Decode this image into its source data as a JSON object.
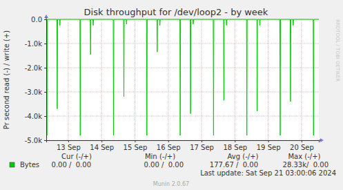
{
  "chart_data": {
    "type": "line",
    "title": "Disk throughput for /dev/loop2 - by week",
    "y_label": "Pr second read (-) / write (+)",
    "x": [
      12.84,
      12.85,
      12.86,
      12.87,
      13.16,
      13.17,
      13.18,
      13.24,
      13.25,
      13.26,
      13.85,
      13.86,
      13.87,
      14.16,
      14.17,
      14.18,
      14.24,
      14.25,
      14.26,
      14.85,
      14.86,
      14.87,
      15.16,
      15.17,
      15.18,
      15.24,
      15.25,
      15.26,
      15.85,
      15.86,
      15.87,
      16.16,
      16.17,
      16.18,
      16.24,
      16.25,
      16.26,
      16.85,
      16.86,
      16.87,
      17.16,
      17.17,
      17.18,
      17.24,
      17.25,
      17.26,
      17.85,
      17.86,
      17.87,
      18.16,
      18.17,
      18.18,
      18.24,
      18.25,
      18.26,
      18.85,
      18.86,
      18.87,
      19.16,
      19.17,
      19.18,
      19.24,
      19.25,
      19.26,
      19.85,
      19.86,
      19.87,
      20.16,
      20.17,
      20.18,
      20.24,
      20.25,
      20.26,
      20.85,
      20.86,
      20.87,
      21.02
    ],
    "series": [
      {
        "name": "Bytes",
        "color": "#00cc00",
        "values": [
          0,
          0,
          -4800,
          0,
          0,
          -3700,
          0,
          0,
          -250,
          0,
          0,
          -4800,
          0,
          0,
          -1450,
          0,
          0,
          -250,
          0,
          0,
          -4800,
          0,
          0,
          -3200,
          0,
          0,
          -200,
          0,
          0,
          -4800,
          0,
          0,
          -1350,
          0,
          0,
          -250,
          0,
          0,
          -4800,
          0,
          0,
          -3900,
          0,
          0,
          -200,
          0,
          0,
          -4800,
          0,
          0,
          -3350,
          0,
          0,
          -250,
          0,
          0,
          -4800,
          0,
          0,
          -3800,
          0,
          0,
          -250,
          0,
          0,
          -4800,
          0,
          0,
          -3400,
          0,
          0,
          -250,
          0,
          0,
          -4800,
          0,
          0
        ]
      }
    ],
    "xlim": [
      12.84,
      21.02
    ],
    "xticks": [
      {
        "value": 13.5,
        "label": "13 Sep"
      },
      {
        "value": 14.5,
        "label": "14 Sep"
      },
      {
        "value": 15.5,
        "label": "15 Sep"
      },
      {
        "value": 16.5,
        "label": "16 Sep"
      },
      {
        "value": 17.5,
        "label": "17 Sep"
      },
      {
        "value": 18.5,
        "label": "18 Sep"
      },
      {
        "value": 19.5,
        "label": "19 Sep"
      },
      {
        "value": 20.5,
        "label": "20 Sep"
      }
    ],
    "ylim": [
      -5000,
      0
    ],
    "yticks": [
      {
        "value": 0,
        "label": "0.0"
      },
      {
        "value": -1000,
        "label": "-1.0k"
      },
      {
        "value": -2000,
        "label": "-2.0k"
      },
      {
        "value": -3000,
        "label": "-3.0k"
      },
      {
        "value": -4000,
        "label": "-4.0k"
      },
      {
        "value": -5000,
        "label": "-5.0k"
      }
    ],
    "grid": true,
    "legend_stats": {
      "headers": [
        "Cur (-/+)",
        "Min (-/+)",
        "Avg (-/+)",
        "Max (-/+)"
      ],
      "values": [
        "0.00 /  0.00",
        "0.00 /  0.00",
        "177.67 /  0.00",
        "28.33k/  0.00"
      ]
    },
    "annotations": [
      "Last update: Sat Sep 21 03:00:06 2024",
      "Munin 2.0.67",
      "RRDTOOL / TOBI OETIKER"
    ]
  }
}
